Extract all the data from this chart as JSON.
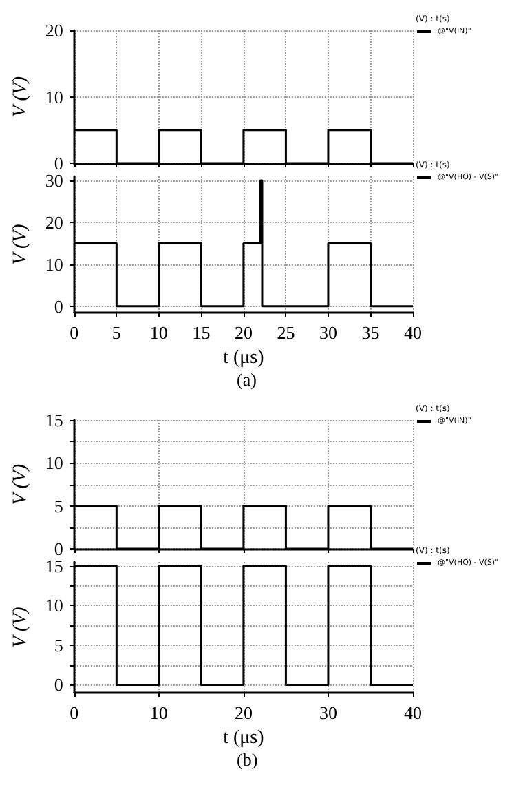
{
  "chart_data": [
    {
      "type": "line",
      "ylabel": "V (V)",
      "legend_title": "(V) : t(s)",
      "x": [
        0,
        5,
        5,
        10,
        10,
        15,
        15,
        20,
        20,
        25,
        25,
        30,
        30,
        35,
        35,
        40
      ],
      "series": [
        {
          "name": "@\"V(IN)\"",
          "color": "#000000",
          "values": [
            5,
            5,
            0,
            0,
            5,
            5,
            0,
            0,
            5,
            5,
            0,
            0,
            5,
            5,
            0,
            0
          ]
        }
      ],
      "xlim": [
        0,
        40
      ],
      "xticks": [
        0,
        5,
        10,
        15,
        20,
        25,
        30,
        35,
        40
      ],
      "ylim": [
        0,
        20
      ],
      "yticks": [
        0,
        10,
        20
      ],
      "tick_labels": "y",
      "grid": true,
      "legend": "top right",
      "marker": "none",
      "line_style": "solid"
    },
    {
      "type": "line",
      "ylabel": "V (V)",
      "xlabel": "t (μs)",
      "legend_title": "(V) : t(s)",
      "annotations": [
        "(a)"
      ],
      "x": [
        0,
        5,
        5,
        10,
        10,
        15,
        15,
        20,
        20,
        22,
        22,
        22.2,
        22.2,
        30,
        30,
        35,
        35,
        40
      ],
      "series": [
        {
          "name": "@\"V(HO) - V(S)\"",
          "color": "#000000",
          "values": [
            15,
            15,
            0,
            0,
            15,
            15,
            0,
            0,
            15,
            15,
            30,
            30,
            0,
            0,
            15,
            15,
            0,
            0
          ]
        }
      ],
      "xlim": [
        0,
        40
      ],
      "xticks": [
        0,
        5,
        10,
        15,
        20,
        25,
        30,
        35,
        40
      ],
      "ylim": [
        -1.5,
        31
      ],
      "yticks": [
        0,
        10,
        20,
        30
      ],
      "grid": true,
      "legend": "top right",
      "marker": "none",
      "line_style": "solid"
    },
    {
      "type": "line",
      "ylabel": "V (V)",
      "legend_title": "(V) : t(s)",
      "x": [
        0,
        5,
        5,
        10,
        10,
        15,
        15,
        20,
        20,
        25,
        25,
        30,
        30,
        35,
        35,
        40
      ],
      "series": [
        {
          "name": "@\"V(IN)\"",
          "color": "#000000",
          "values": [
            5,
            5,
            0,
            0,
            5,
            5,
            0,
            0,
            5,
            5,
            0,
            0,
            5,
            5,
            0,
            0
          ]
        }
      ],
      "xlim": [
        0,
        40
      ],
      "xticks": [
        0,
        10,
        20,
        30,
        40
      ],
      "ylim": [
        0,
        15
      ],
      "yticks": [
        0,
        {
          "value": 2.5,
          "label": null
        },
        5,
        {
          "value": 7.5,
          "label": null
        },
        10,
        {
          "value": 12.5,
          "label": null
        },
        15
      ],
      "tick_labels": "y",
      "grid": true,
      "legend": "top right",
      "marker": "none",
      "line_style": "solid"
    },
    {
      "type": "line",
      "ylabel": "V (V)",
      "xlabel": "t (μs)",
      "legend_title": "(V) : t(s)",
      "annotations": [
        "(b)"
      ],
      "x": [
        0,
        5,
        5,
        10,
        10,
        15,
        15,
        20,
        20,
        25,
        25,
        30,
        30,
        35,
        35,
        40
      ],
      "series": [
        {
          "name": "@\"V(HO) - V(S)\"",
          "color": "#000000",
          "values": [
            15,
            15,
            0,
            0,
            15,
            15,
            0,
            0,
            15,
            15,
            0,
            0,
            15,
            15,
            0,
            0
          ]
        }
      ],
      "xlim": [
        0,
        40
      ],
      "xticks": [
        0,
        10,
        20,
        30,
        40
      ],
      "ylim": [
        -1,
        15.5
      ],
      "yticks": [
        0,
        {
          "value": 2.5,
          "label": null
        },
        5,
        {
          "value": 7.5,
          "label": null
        },
        10,
        {
          "value": 12.5,
          "label": null
        },
        15
      ],
      "grid": true,
      "legend": "top right",
      "marker": "none",
      "line_style": "solid"
    }
  ]
}
